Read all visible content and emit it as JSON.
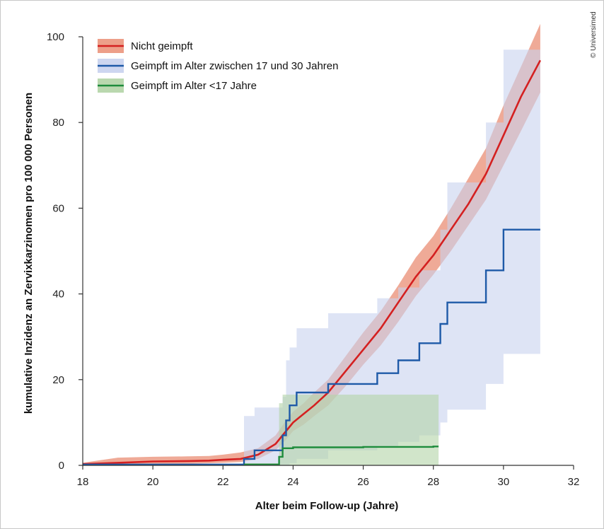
{
  "credit": "© Universimed",
  "chart_data": {
    "type": "line",
    "xlabel": "Alter beim Follow-up (Jahre)",
    "ylabel": "kumulative Inzidenz an Zervixkarzinomen pro 100 000 Personen",
    "xlim": [
      18,
      32
    ],
    "ylim": [
      0,
      100
    ],
    "xticks": [
      "18",
      "20",
      "22",
      "24",
      "26",
      "28",
      "30",
      "32"
    ],
    "yticks": [
      "0",
      "20",
      "40",
      "60",
      "80",
      "100"
    ],
    "legend_position": "top-left",
    "series": [
      {
        "name": "Nicht geimpft",
        "color": "#d42020",
        "band_color": "#ea8e74",
        "step": false,
        "x": [
          18,
          19,
          20,
          21,
          21.6,
          22,
          22.5,
          23,
          23.5,
          23.8,
          24,
          24.3,
          24.6,
          25,
          25.5,
          26,
          26.5,
          27,
          27.5,
          28,
          28.5,
          29,
          29.5,
          30,
          30.5,
          31.05
        ],
        "y": [
          0.3,
          0.6,
          0.9,
          1.0,
          1.1,
          1.3,
          1.5,
          2.5,
          5,
          8,
          10,
          12,
          14,
          17,
          22,
          27,
          32,
          38,
          44,
          49,
          55,
          61,
          68,
          77,
          86,
          94.5
        ],
        "lower": [
          0,
          0.1,
          0.3,
          0.4,
          0.5,
          0.6,
          0.8,
          1.5,
          3.5,
          6,
          8,
          9.5,
          11.5,
          14,
          18.5,
          23.5,
          28,
          33.5,
          39.5,
          44.5,
          50,
          56,
          62,
          70,
          78,
          87
        ],
        "upper": [
          0.6,
          1.8,
          2,
          2.1,
          2.2,
          2.5,
          3,
          4,
          7,
          10.5,
          12.5,
          14.5,
          17,
          20,
          25.5,
          31,
          36,
          42,
          48.5,
          53.5,
          60,
          67,
          74,
          84,
          93,
          103
        ]
      },
      {
        "name": "Geimpft im Alter zwischen 17 und 30 Jahren",
        "color": "#1e5aa8",
        "band_color": "#c8d2ee",
        "step": true,
        "x": [
          18,
          22.6,
          22.9,
          23.7,
          23.8,
          23.9,
          24.1,
          25,
          26.4,
          27,
          27.6,
          28.2,
          28.4,
          29.5,
          30,
          31.05
        ],
        "y": [
          0.2,
          1.5,
          3.5,
          7,
          10.5,
          14,
          17,
          19,
          21.5,
          24.5,
          28.5,
          33,
          38,
          45.5,
          55,
          55
        ],
        "lower": [
          0,
          0,
          0,
          0,
          0,
          0.5,
          1.5,
          3.5,
          4.5,
          5.5,
          7,
          10,
          13,
          19,
          26,
          31
        ],
        "upper": [
          0.4,
          11.5,
          13.5,
          16,
          24.5,
          27.5,
          32,
          35.5,
          39,
          41.5,
          45.5,
          55,
          66,
          80,
          97,
          97
        ]
      },
      {
        "name": "Geimpft im Alter <17 Jahre",
        "color": "#1e8c3c",
        "band_color": "#b2d4a6",
        "step": true,
        "x": [
          22.6,
          23.6,
          23.7,
          24,
          26,
          28,
          28.15
        ],
        "y": [
          0.2,
          2,
          4,
          4.2,
          4.3,
          4.4,
          4.4
        ],
        "lower": [
          0,
          0,
          0,
          0,
          0,
          0,
          0
        ],
        "upper": [
          0.5,
          14.5,
          16.5,
          16.5,
          16.5,
          16.5,
          16.5
        ]
      }
    ]
  }
}
